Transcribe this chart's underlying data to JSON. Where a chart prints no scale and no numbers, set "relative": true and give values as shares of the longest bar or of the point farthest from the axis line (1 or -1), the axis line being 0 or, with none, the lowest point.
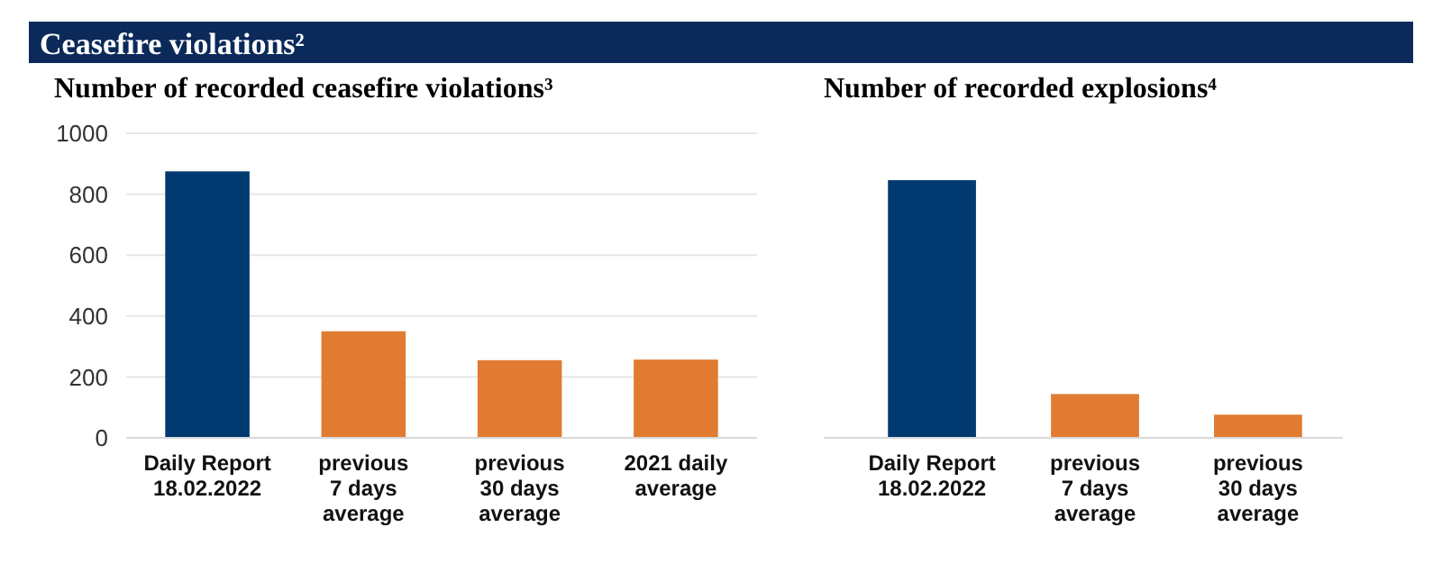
{
  "chart_data": [
    {
      "type": "bar",
      "title": "Ceasefire violations²",
      "subtitle": "Number of recorded ceasefire violations³",
      "categories": [
        "Daily Report\n18.02.2022",
        "previous\n7 days\naverage",
        "previous\n30 days\naverage",
        "2021 daily\naverage"
      ],
      "values": [
        875,
        350,
        255,
        257
      ],
      "colors": [
        "#003a70",
        "#e07b31",
        "#e07b31",
        "#e07b31"
      ],
      "ylim": [
        0,
        1000
      ],
      "yticks": [
        0,
        200,
        400,
        600,
        800,
        1000
      ],
      "grid": "y"
    },
    {
      "type": "bar",
      "subtitle": "Number of recorded explosions⁴",
      "categories": [
        "Daily Report\n18.02.2022",
        "previous\n7 days\naverage",
        "previous\n30 days\naverage"
      ],
      "values": [
        1,
        0.17,
        0.09
      ],
      "colors": [
        "#003a70",
        "#e07b31",
        "#e07b31"
      ],
      "relative": true
    }
  ]
}
